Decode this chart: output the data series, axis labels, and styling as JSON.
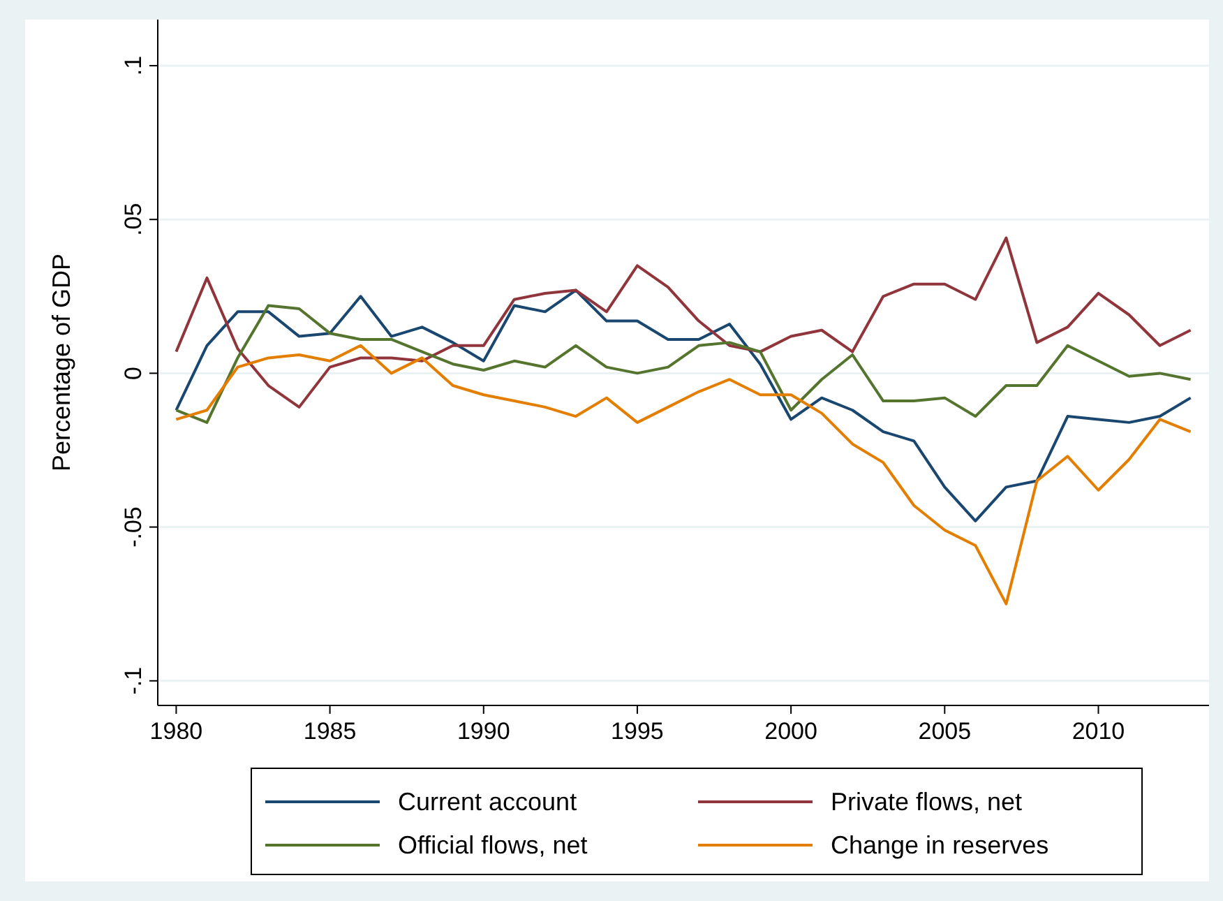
{
  "chart_data": {
    "type": "line",
    "ylabel": "Percentage of GDP",
    "x": [
      1980,
      1981,
      1982,
      1983,
      1984,
      1985,
      1986,
      1987,
      1988,
      1989,
      1990,
      1991,
      1992,
      1993,
      1994,
      1995,
      1996,
      1997,
      1998,
      1999,
      2000,
      2001,
      2002,
      2003,
      2004,
      2005,
      2006,
      2007,
      2008,
      2009,
      2010,
      2011,
      2012,
      2013
    ],
    "xlim": [
      1979.4,
      2013.6
    ],
    "xticks": [
      1980,
      1985,
      1990,
      1995,
      2000,
      2005,
      2010
    ],
    "ylim": [
      -0.108,
      0.115
    ],
    "yticks": [
      {
        "value": -0.1,
        "label": "-.1"
      },
      {
        "value": -0.05,
        "label": "-.05"
      },
      {
        "value": 0,
        "label": "0"
      },
      {
        "value": 0.05,
        "label": ".05"
      },
      {
        "value": 0.1,
        "label": ".1"
      }
    ],
    "grid": "y",
    "legend": "bottom",
    "marker": "none",
    "line_style": "solid",
    "series": [
      {
        "name": "Current account",
        "color": "#1a476f",
        "values": [
          -0.012,
          0.009,
          0.02,
          0.02,
          0.012,
          0.013,
          0.025,
          0.012,
          0.015,
          0.01,
          0.004,
          0.022,
          0.02,
          0.027,
          0.017,
          0.017,
          0.011,
          0.011,
          0.016,
          0.003,
          -0.015,
          -0.008,
          -0.012,
          -0.019,
          -0.022,
          -0.037,
          -0.048,
          -0.037,
          -0.035,
          -0.014,
          -0.015,
          -0.016,
          -0.014,
          -0.008
        ]
      },
      {
        "name": "Private flows, net",
        "color": "#90353b",
        "values": [
          0.007,
          0.031,
          0.008,
          -0.004,
          -0.011,
          0.002,
          0.005,
          0.005,
          0.004,
          0.009,
          0.009,
          0.024,
          0.026,
          0.027,
          0.02,
          0.035,
          0.028,
          0.017,
          0.009,
          0.007,
          0.012,
          0.014,
          0.007,
          0.025,
          0.029,
          0.029,
          0.024,
          0.044,
          0.01,
          0.015,
          0.026,
          0.019,
          0.009,
          0.014
        ]
      },
      {
        "name": "Official flows, net",
        "color": "#55752f",
        "values": [
          -0.012,
          -0.016,
          0.005,
          0.022,
          0.021,
          0.013,
          0.011,
          0.011,
          0.007,
          0.003,
          0.001,
          0.004,
          0.002,
          0.009,
          0.002,
          0,
          0.002,
          0.009,
          0.01,
          0.007,
          -0.012,
          -0.002,
          0.006,
          -0.009,
          -0.009,
          -0.008,
          -0.014,
          -0.004,
          -0.004,
          0.009,
          0.004,
          -0.001,
          0,
          -0.002
        ]
      },
      {
        "name": "Change in reserves",
        "color": "#e37e00",
        "values": [
          -0.015,
          -0.012,
          0.002,
          0.005,
          0.006,
          0.004,
          0.009,
          0,
          0.005,
          -0.004,
          -0.007,
          -0.009,
          -0.011,
          -0.014,
          -0.008,
          -0.016,
          -0.011,
          -0.006,
          -0.002,
          -0.007,
          -0.007,
          -0.013,
          -0.023,
          -0.029,
          -0.043,
          -0.051,
          -0.056,
          -0.075,
          -0.035,
          -0.027,
          -0.038,
          -0.028,
          -0.015,
          -0.019
        ]
      }
    ]
  }
}
